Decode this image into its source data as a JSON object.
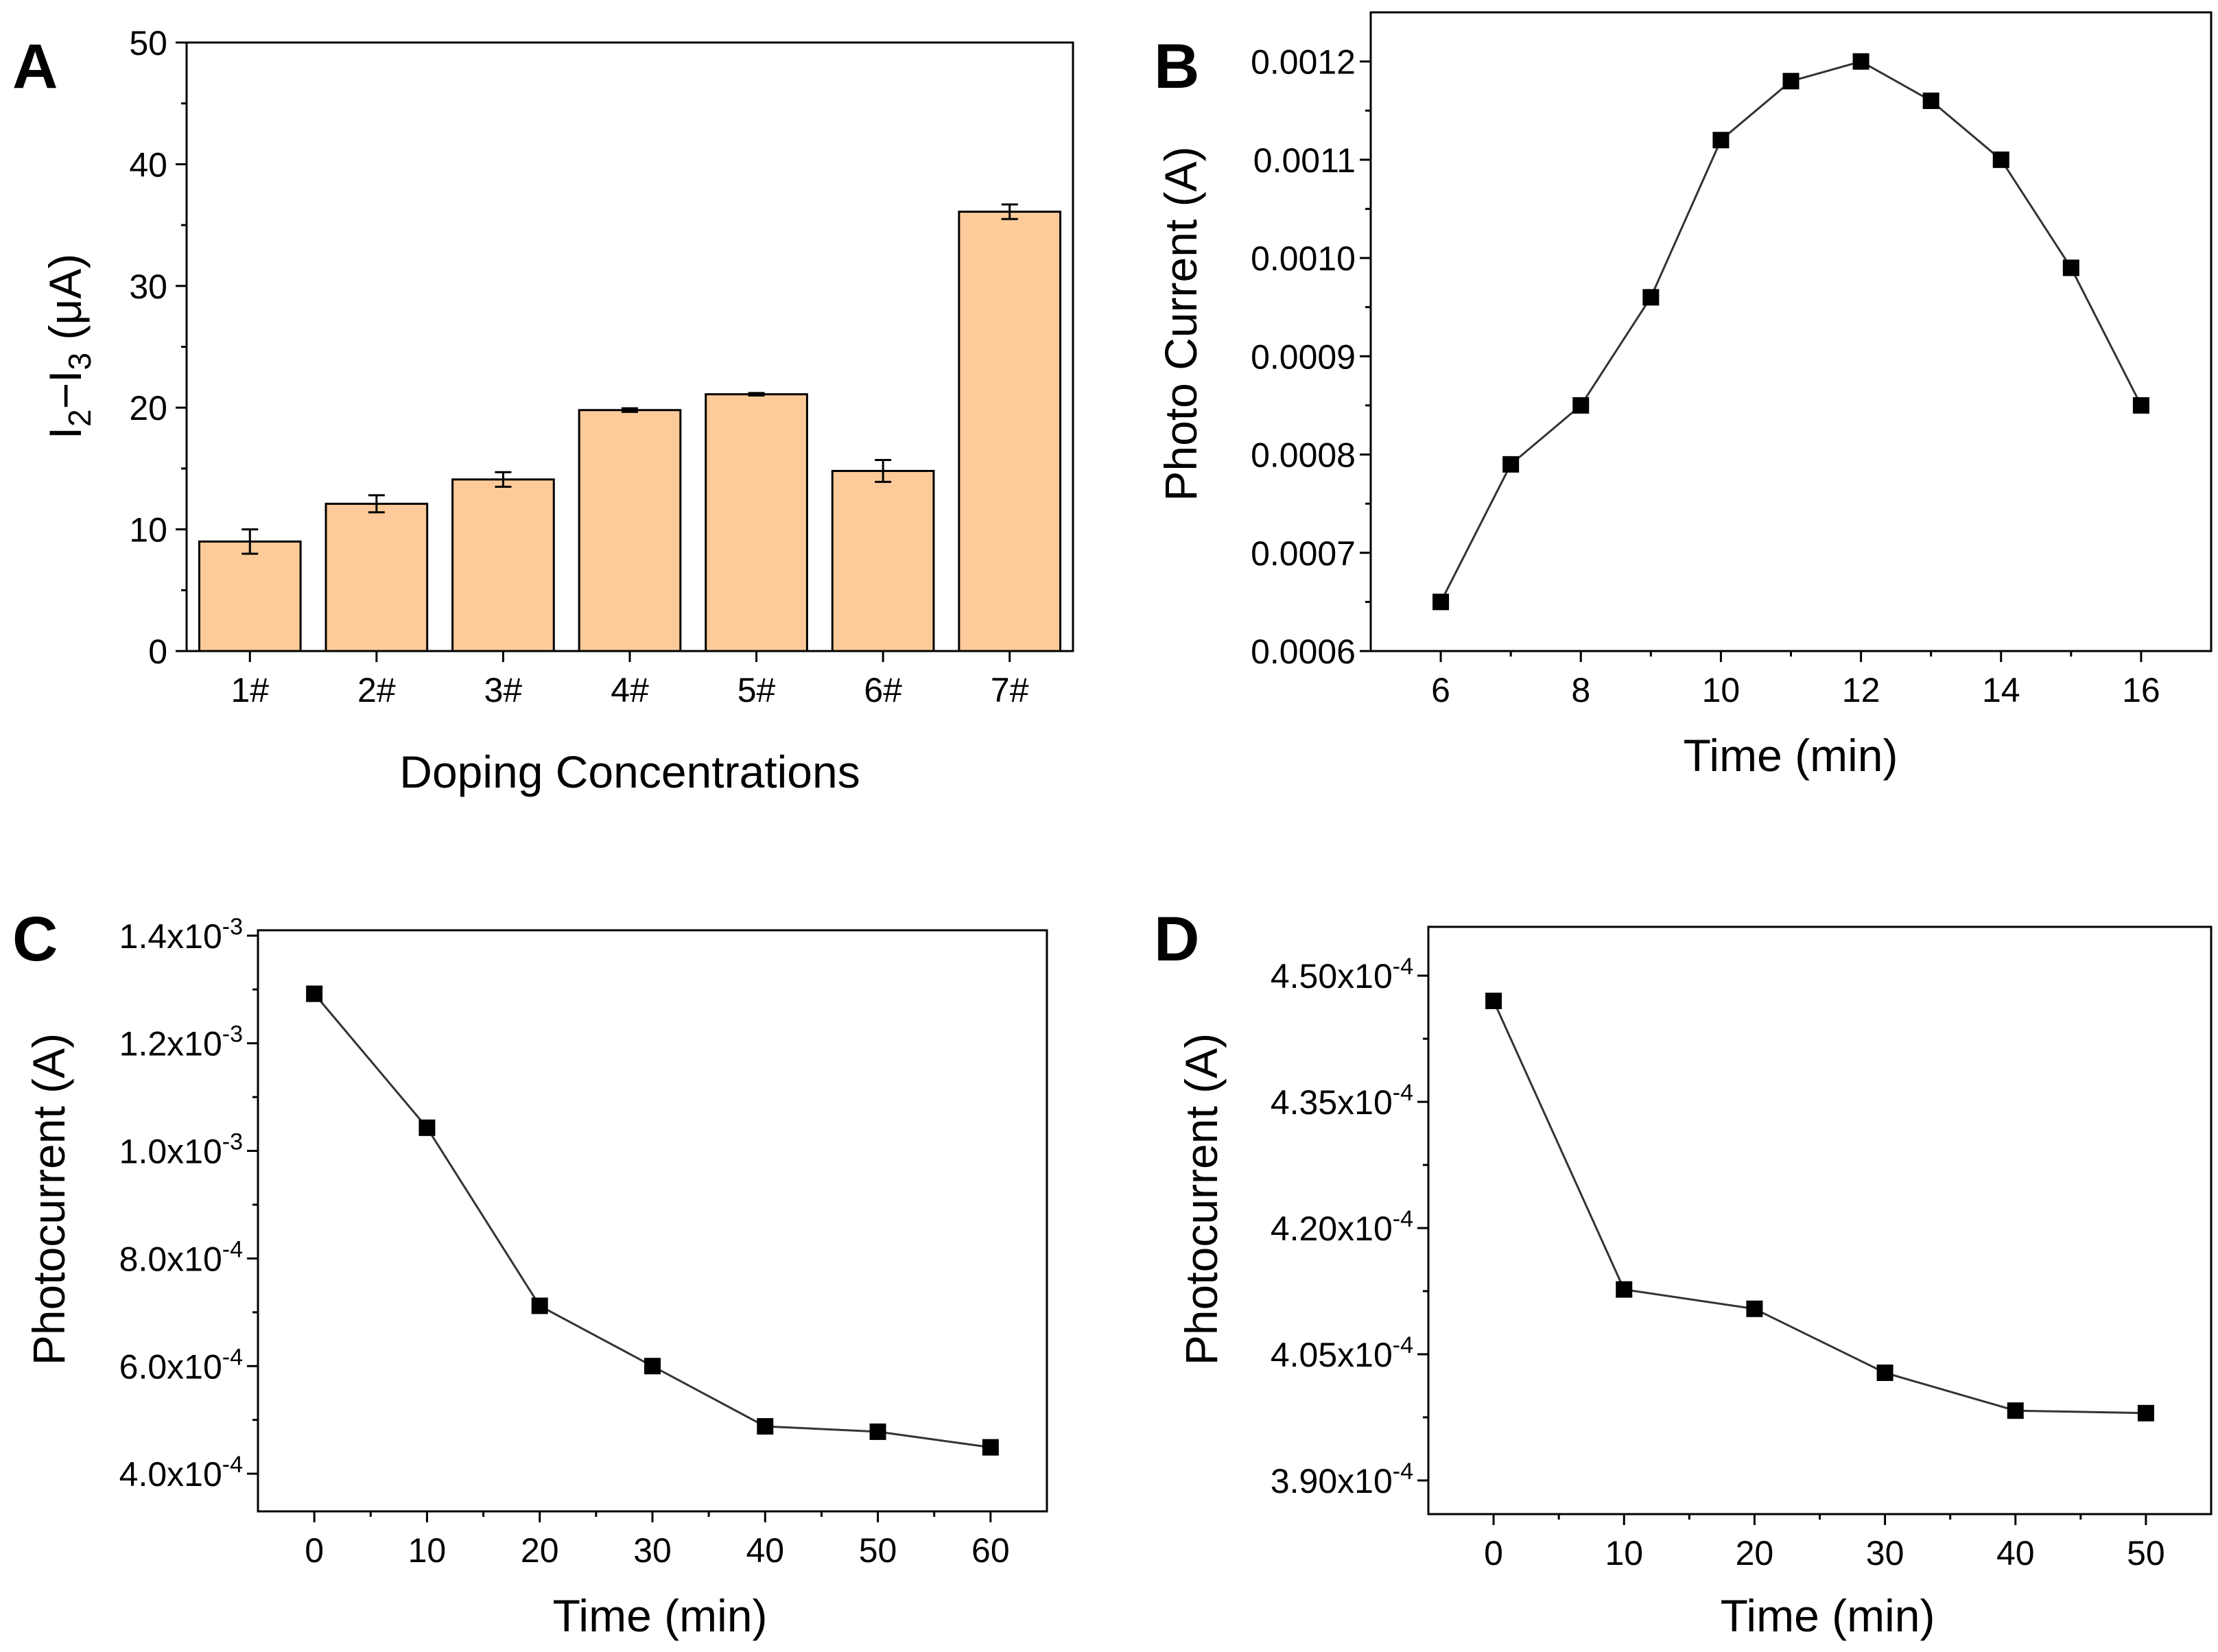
{
  "panels": [
    {
      "letter": "A",
      "chart_data": {
        "type": "bar",
        "categories": [
          "1#",
          "2#",
          "3#",
          "4#",
          "5#",
          "6#",
          "7#"
        ],
        "values": [
          9.0,
          12.1,
          14.1,
          19.8,
          21.1,
          14.8,
          36.1
        ],
        "errors": [
          1.0,
          0.7,
          0.6,
          0.15,
          0.1,
          0.9,
          0.6
        ],
        "title": "",
        "xlabel": "Doping Concentrations",
        "ylabel": "I2−I3 (μA)",
        "ylabel_parts": [
          "I",
          "2",
          "−I",
          "3",
          " (μA)"
        ],
        "ylim": [
          0,
          50
        ],
        "yticks": [
          "0",
          "10",
          "20",
          "30",
          "40",
          "50"
        ],
        "bar_color": "#FDCB9A"
      }
    },
    {
      "letter": "B",
      "chart_data": {
        "type": "line",
        "x": [
          6,
          7,
          8,
          9,
          10,
          11,
          12,
          13,
          14,
          15,
          16
        ],
        "y": [
          0.00065,
          0.00079,
          0.00085,
          0.00096,
          0.00112,
          0.00118,
          0.0012,
          0.00116,
          0.0011,
          0.00099,
          0.00085
        ],
        "title": "",
        "xlabel": "Time (min)",
        "ylabel": "Photo Current (A)",
        "xlim": [
          5.0,
          17.0
        ],
        "ylim": [
          0.0006,
          0.00125
        ],
        "xticks": [
          6,
          8,
          10,
          12,
          14,
          16
        ],
        "xtick_labels": [
          "6",
          "8",
          "10",
          "12",
          "14",
          "16"
        ],
        "yticks": [
          0.0006,
          0.0007,
          0.0008,
          0.0009,
          0.001,
          0.0011,
          0.0012
        ],
        "ytick_labels": [
          "0.0006",
          "0.0007",
          "0.0008",
          "0.0009",
          "0.0010",
          "0.0011",
          "0.0012"
        ],
        "marker": "square",
        "color": "#000000"
      }
    },
    {
      "letter": "C",
      "chart_data": {
        "type": "line",
        "x": [
          0,
          10,
          20,
          30,
          40,
          50,
          60
        ],
        "y": [
          0.001292,
          0.001043,
          0.000712,
          0.0006,
          0.000488,
          0.000478,
          0.000449
        ],
        "title": "",
        "xlabel": "Time (min)",
        "ylabel": "Photocurrent (A)",
        "xlim": [
          -5,
          65
        ],
        "ylim": [
          0.00033,
          0.00141
        ],
        "xticks": [
          0,
          10,
          20,
          30,
          40,
          50,
          60
        ],
        "xtick_labels": [
          "0",
          "10",
          "20",
          "30",
          "40",
          "50",
          "60"
        ],
        "yticks": [
          0.0004,
          0.0006,
          0.0008,
          0.001,
          0.0012,
          0.0014
        ],
        "ytick_labels": [
          {
            "mant": "4.0x10",
            "exp": "-4"
          },
          {
            "mant": "6.0x10",
            "exp": "-4"
          },
          {
            "mant": "8.0x10",
            "exp": "-4"
          },
          {
            "mant": "1.0x10",
            "exp": "-3"
          },
          {
            "mant": "1.2x10",
            "exp": "-3"
          },
          {
            "mant": "1.4x10",
            "exp": "-3"
          }
        ],
        "marker": "square",
        "color": "#000000"
      }
    },
    {
      "letter": "D",
      "chart_data": {
        "type": "line",
        "x": [
          0,
          10,
          20,
          30,
          40,
          50
        ],
        "y": [
          0.000447,
          0.0004127,
          0.0004104,
          0.0004028,
          0.0003983,
          0.000398
        ],
        "title": "",
        "xlabel": "Time (min)",
        "ylabel": "Photocurrent (A)",
        "xlim": [
          -5,
          55
        ],
        "ylim": [
          0.000386,
          0.0004558
        ],
        "xticks": [
          0,
          10,
          20,
          30,
          40,
          50
        ],
        "xtick_labels": [
          "0",
          "10",
          "20",
          "30",
          "40",
          "50"
        ],
        "yticks": [
          0.00039,
          0.000405,
          0.00042,
          0.000435,
          0.00045
        ],
        "ytick_labels": [
          {
            "mant": "3.90x10",
            "exp": "-4"
          },
          {
            "mant": "4.05x10",
            "exp": "-4"
          },
          {
            "mant": "4.20x10",
            "exp": "-4"
          },
          {
            "mant": "4.35x10",
            "exp": "-4"
          },
          {
            "mant": "4.50x10",
            "exp": "-4"
          }
        ],
        "marker": "square",
        "color": "#000000"
      }
    }
  ]
}
